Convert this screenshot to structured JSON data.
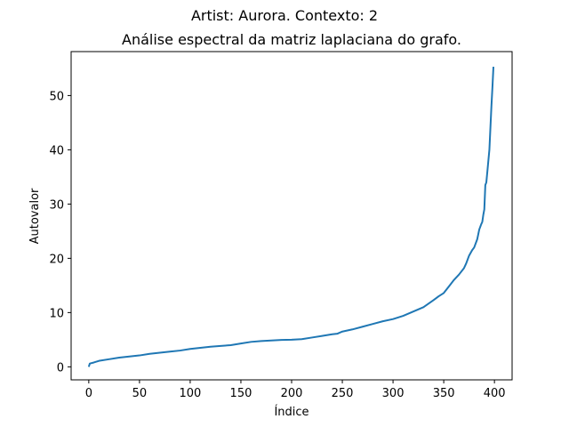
{
  "chart_data": {
    "type": "line",
    "suptitle": "Artist: Aurora. Contexto: 2",
    "title": "Análise espectral da matriz laplaciana do grafo.",
    "xlabel": "Índice",
    "ylabel": "Autovalor",
    "xlim": [
      -17.4,
      417.4
    ],
    "ylim": [
      -2.4,
      58.1
    ],
    "xticks": [
      0,
      50,
      100,
      150,
      200,
      250,
      300,
      350,
      400
    ],
    "yticks": [
      0,
      10,
      20,
      30,
      40,
      50
    ],
    "grid": false,
    "line_color": "#1f77b4",
    "series": [
      {
        "x": [
          0,
          1,
          5,
          10,
          20,
          30,
          40,
          50,
          60,
          70,
          80,
          90,
          100,
          110,
          120,
          130,
          140,
          150,
          160,
          170,
          180,
          190,
          200,
          210,
          220,
          230,
          240,
          245,
          250,
          260,
          270,
          280,
          290,
          300,
          310,
          320,
          330,
          340,
          345,
          350,
          355,
          360,
          365,
          370,
          372,
          375,
          378,
          380,
          383,
          385,
          387,
          388,
          389,
          390,
          391,
          392,
          393,
          394,
          395,
          396,
          397,
          398,
          399
        ],
        "y": [
          0,
          0.6,
          0.8,
          1.1,
          1.4,
          1.7,
          1.9,
          2.1,
          2.4,
          2.6,
          2.8,
          3.0,
          3.3,
          3.5,
          3.7,
          3.85,
          4.0,
          4.3,
          4.6,
          4.75,
          4.85,
          4.95,
          5.0,
          5.1,
          5.4,
          5.7,
          6.0,
          6.1,
          6.5,
          6.9,
          7.4,
          7.9,
          8.4,
          8.8,
          9.4,
          10.2,
          11.0,
          12.3,
          13.0,
          13.6,
          14.8,
          16.0,
          17.0,
          18.2,
          19.0,
          20.5,
          21.5,
          22.0,
          23.5,
          25.3,
          26.3,
          26.7,
          28.0,
          29.0,
          33.5,
          34.0,
          36.0,
          38.0,
          40.0,
          44.0,
          48.0,
          51.5,
          55.3
        ]
      }
    ]
  }
}
